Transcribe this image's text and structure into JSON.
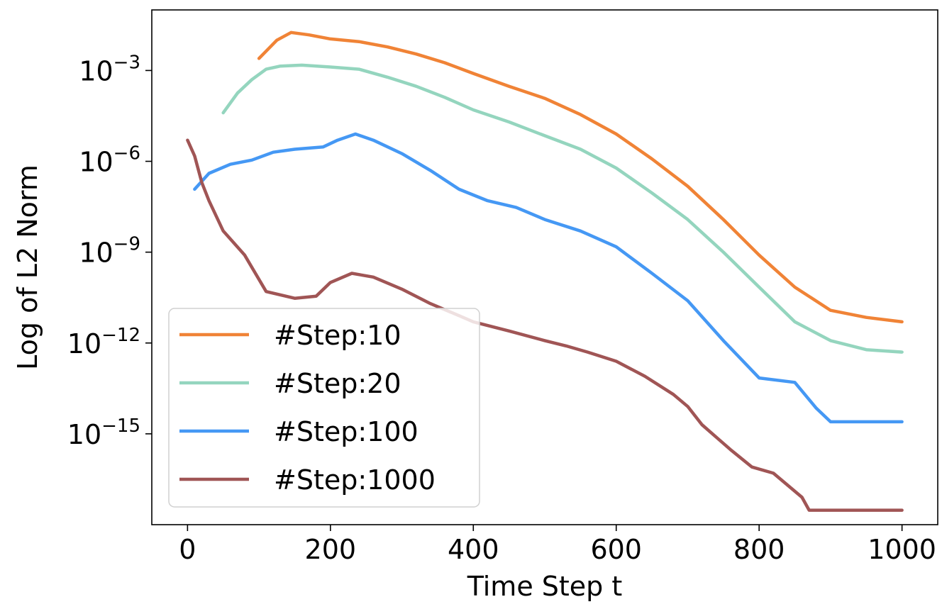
{
  "chart_data": {
    "type": "line",
    "title": "",
    "xlabel": "Time Step t",
    "ylabel": "Log of L2 Norm",
    "yscale": "log",
    "xlim": [
      -50,
      1050
    ],
    "ylim": [
      1e-18,
      0.1
    ],
    "x_ticks": [
      {
        "value": 0,
        "label": "0"
      },
      {
        "value": 200,
        "label": "200"
      },
      {
        "value": 400,
        "label": "400"
      },
      {
        "value": 600,
        "label": "600"
      },
      {
        "value": 800,
        "label": "800"
      },
      {
        "value": 1000,
        "label": "1000"
      }
    ],
    "y_ticks": [
      {
        "value": 0.001,
        "base": "10",
        "exp": "−3"
      },
      {
        "value": 1e-06,
        "base": "10",
        "exp": "−6"
      },
      {
        "value": 1e-09,
        "base": "10",
        "exp": "−9"
      },
      {
        "value": 1e-12,
        "base": "10",
        "exp": "−12"
      },
      {
        "value": 1e-15,
        "base": "10",
        "exp": "−15"
      }
    ],
    "grid": false,
    "legend_position": "lower-left",
    "series": [
      {
        "name": "#Step:10",
        "color": "#f08336",
        "x": [
          100,
          125,
          145,
          170,
          200,
          240,
          280,
          320,
          360,
          400,
          450,
          500,
          550,
          600,
          650,
          700,
          750,
          800,
          850,
          900,
          950,
          1000
        ],
        "y": [
          0.0025,
          0.01,
          0.018,
          0.015,
          0.011,
          0.009,
          0.006,
          0.0035,
          0.0018,
          0.0008,
          0.0003,
          0.00012,
          3.5e-05,
          8e-06,
          1.2e-06,
          1.5e-07,
          1.2e-08,
          8e-10,
          7e-11,
          1.2e-11,
          7e-12,
          5e-12
        ]
      },
      {
        "name": "#Step:20",
        "color": "#94d5be",
        "x": [
          50,
          70,
          90,
          110,
          130,
          160,
          200,
          240,
          280,
          320,
          360,
          400,
          450,
          500,
          550,
          600,
          650,
          700,
          750,
          800,
          850,
          900,
          950,
          1000
        ],
        "y": [
          4e-05,
          0.00018,
          0.0005,
          0.0011,
          0.0014,
          0.0015,
          0.0013,
          0.0011,
          0.0006,
          0.0003,
          0.00013,
          5e-05,
          2e-05,
          7e-06,
          2.5e-06,
          6e-07,
          9e-08,
          1.2e-08,
          1e-09,
          7e-11,
          5e-12,
          1.2e-12,
          6e-13,
          5e-13
        ]
      },
      {
        "name": "#Step:100",
        "color": "#4598f4",
        "x": [
          10,
          30,
          60,
          90,
          120,
          150,
          190,
          210,
          235,
          260,
          300,
          340,
          380,
          420,
          460,
          500,
          550,
          600,
          650,
          700,
          750,
          800,
          850,
          880,
          900,
          940,
          970,
          1000
        ],
        "y": [
          1.2e-07,
          4e-07,
          8e-07,
          1.1e-06,
          2e-06,
          2.5e-06,
          3e-06,
          5e-06,
          8e-06,
          5e-06,
          1.8e-06,
          5e-07,
          1.2e-07,
          5e-08,
          3e-08,
          1.2e-08,
          5e-09,
          1.5e-09,
          2e-10,
          2.5e-11,
          1.2e-12,
          7e-14,
          5e-14,
          7e-15,
          2.5e-15,
          2.5e-15,
          2.5e-15,
          2.5e-15
        ]
      },
      {
        "name": "#Step:1000",
        "color": "#a05555",
        "x": [
          0,
          10,
          20,
          30,
          50,
          80,
          110,
          150,
          180,
          200,
          230,
          260,
          300,
          340,
          380,
          400,
          450,
          500,
          530,
          560,
          600,
          640,
          680,
          700,
          720,
          760,
          790,
          820,
          860,
          870,
          900,
          950,
          1000
        ],
        "y": [
          5e-06,
          1.5e-06,
          2e-07,
          5e-08,
          5e-09,
          8e-10,
          5e-11,
          3e-11,
          3.5e-11,
          1e-10,
          2e-10,
          1.5e-10,
          6e-11,
          2e-11,
          8e-12,
          5e-12,
          2.5e-12,
          1.2e-12,
          8e-13,
          5e-13,
          2.5e-13,
          8e-14,
          2e-14,
          8e-15,
          2e-15,
          3e-16,
          8e-17,
          5e-17,
          8e-18,
          3e-18,
          3e-18,
          3e-18,
          3e-18
        ]
      }
    ]
  }
}
